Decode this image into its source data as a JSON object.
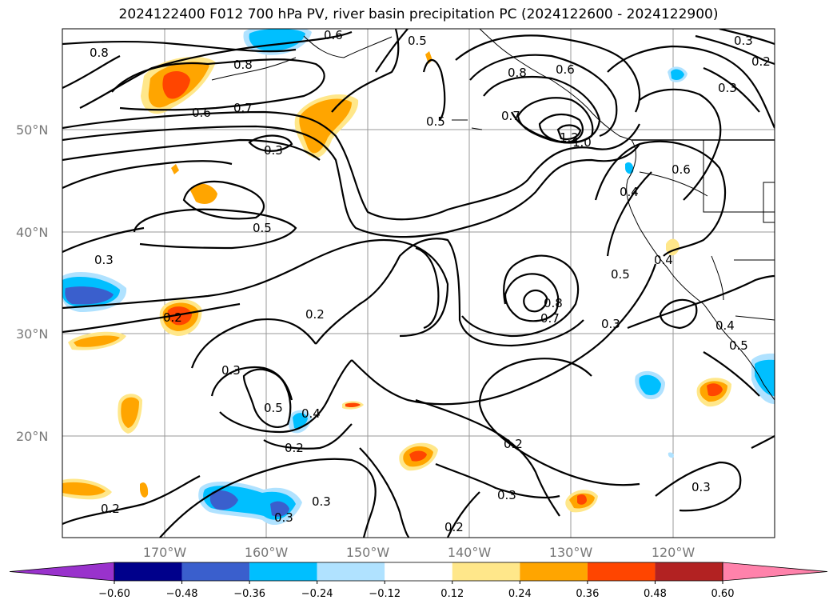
{
  "title": "2024122400 F012 700 hPa PV, river basin precipitation PC (2024122600 - 2024122900)",
  "lat_labels": [
    "50°N",
    "40°N",
    "30°N",
    "20°N"
  ],
  "lon_labels": [
    "170°W",
    "160°W",
    "150°W",
    "140°W",
    "130°W",
    "120°W"
  ],
  "contour_labels": [
    "0.8",
    "0.8",
    "0.6",
    "0.7",
    "0.6",
    "0.5",
    "0.5",
    "0.3",
    "0.5",
    "0.3",
    "0.2",
    "0.2",
    "0.3",
    "0.5",
    "0.4",
    "0.2",
    "0.3",
    "0.3",
    "0.2",
    "0.3",
    "0.2",
    "0.8",
    "0.7",
    "1.2",
    "1.0",
    "0.6",
    "0.7",
    "0.8",
    "0.3",
    "0.2",
    "0.3",
    "0.6",
    "0.4",
    "0.5",
    "0.4",
    "0.3",
    "0.2",
    "0.3",
    "0.4",
    "0.5"
  ],
  "colorbar": {
    "ticks": [
      "−0.60",
      "−0.48",
      "−0.36",
      "−0.24",
      "−0.12",
      "0.12",
      "0.24",
      "0.36",
      "0.48",
      "0.60"
    ],
    "colors": [
      "#9932cc",
      "#00008b",
      "#3a5fcd",
      "#00bfff",
      "#b0e2ff",
      "#ffffff",
      "#ffe78a",
      "#ffa500",
      "#ff4500",
      "#b22222",
      "#ff82ab"
    ]
  },
  "fill_colors": {
    "neg_light": "#b0e2ff",
    "neg_mid": "#00bfff",
    "neg_strong": "#3a5fcd",
    "pos_light": "#ffe78a",
    "pos_mid": "#ffa500",
    "pos_strong": "#ff4500",
    "pos_deep": "#b22222"
  }
}
